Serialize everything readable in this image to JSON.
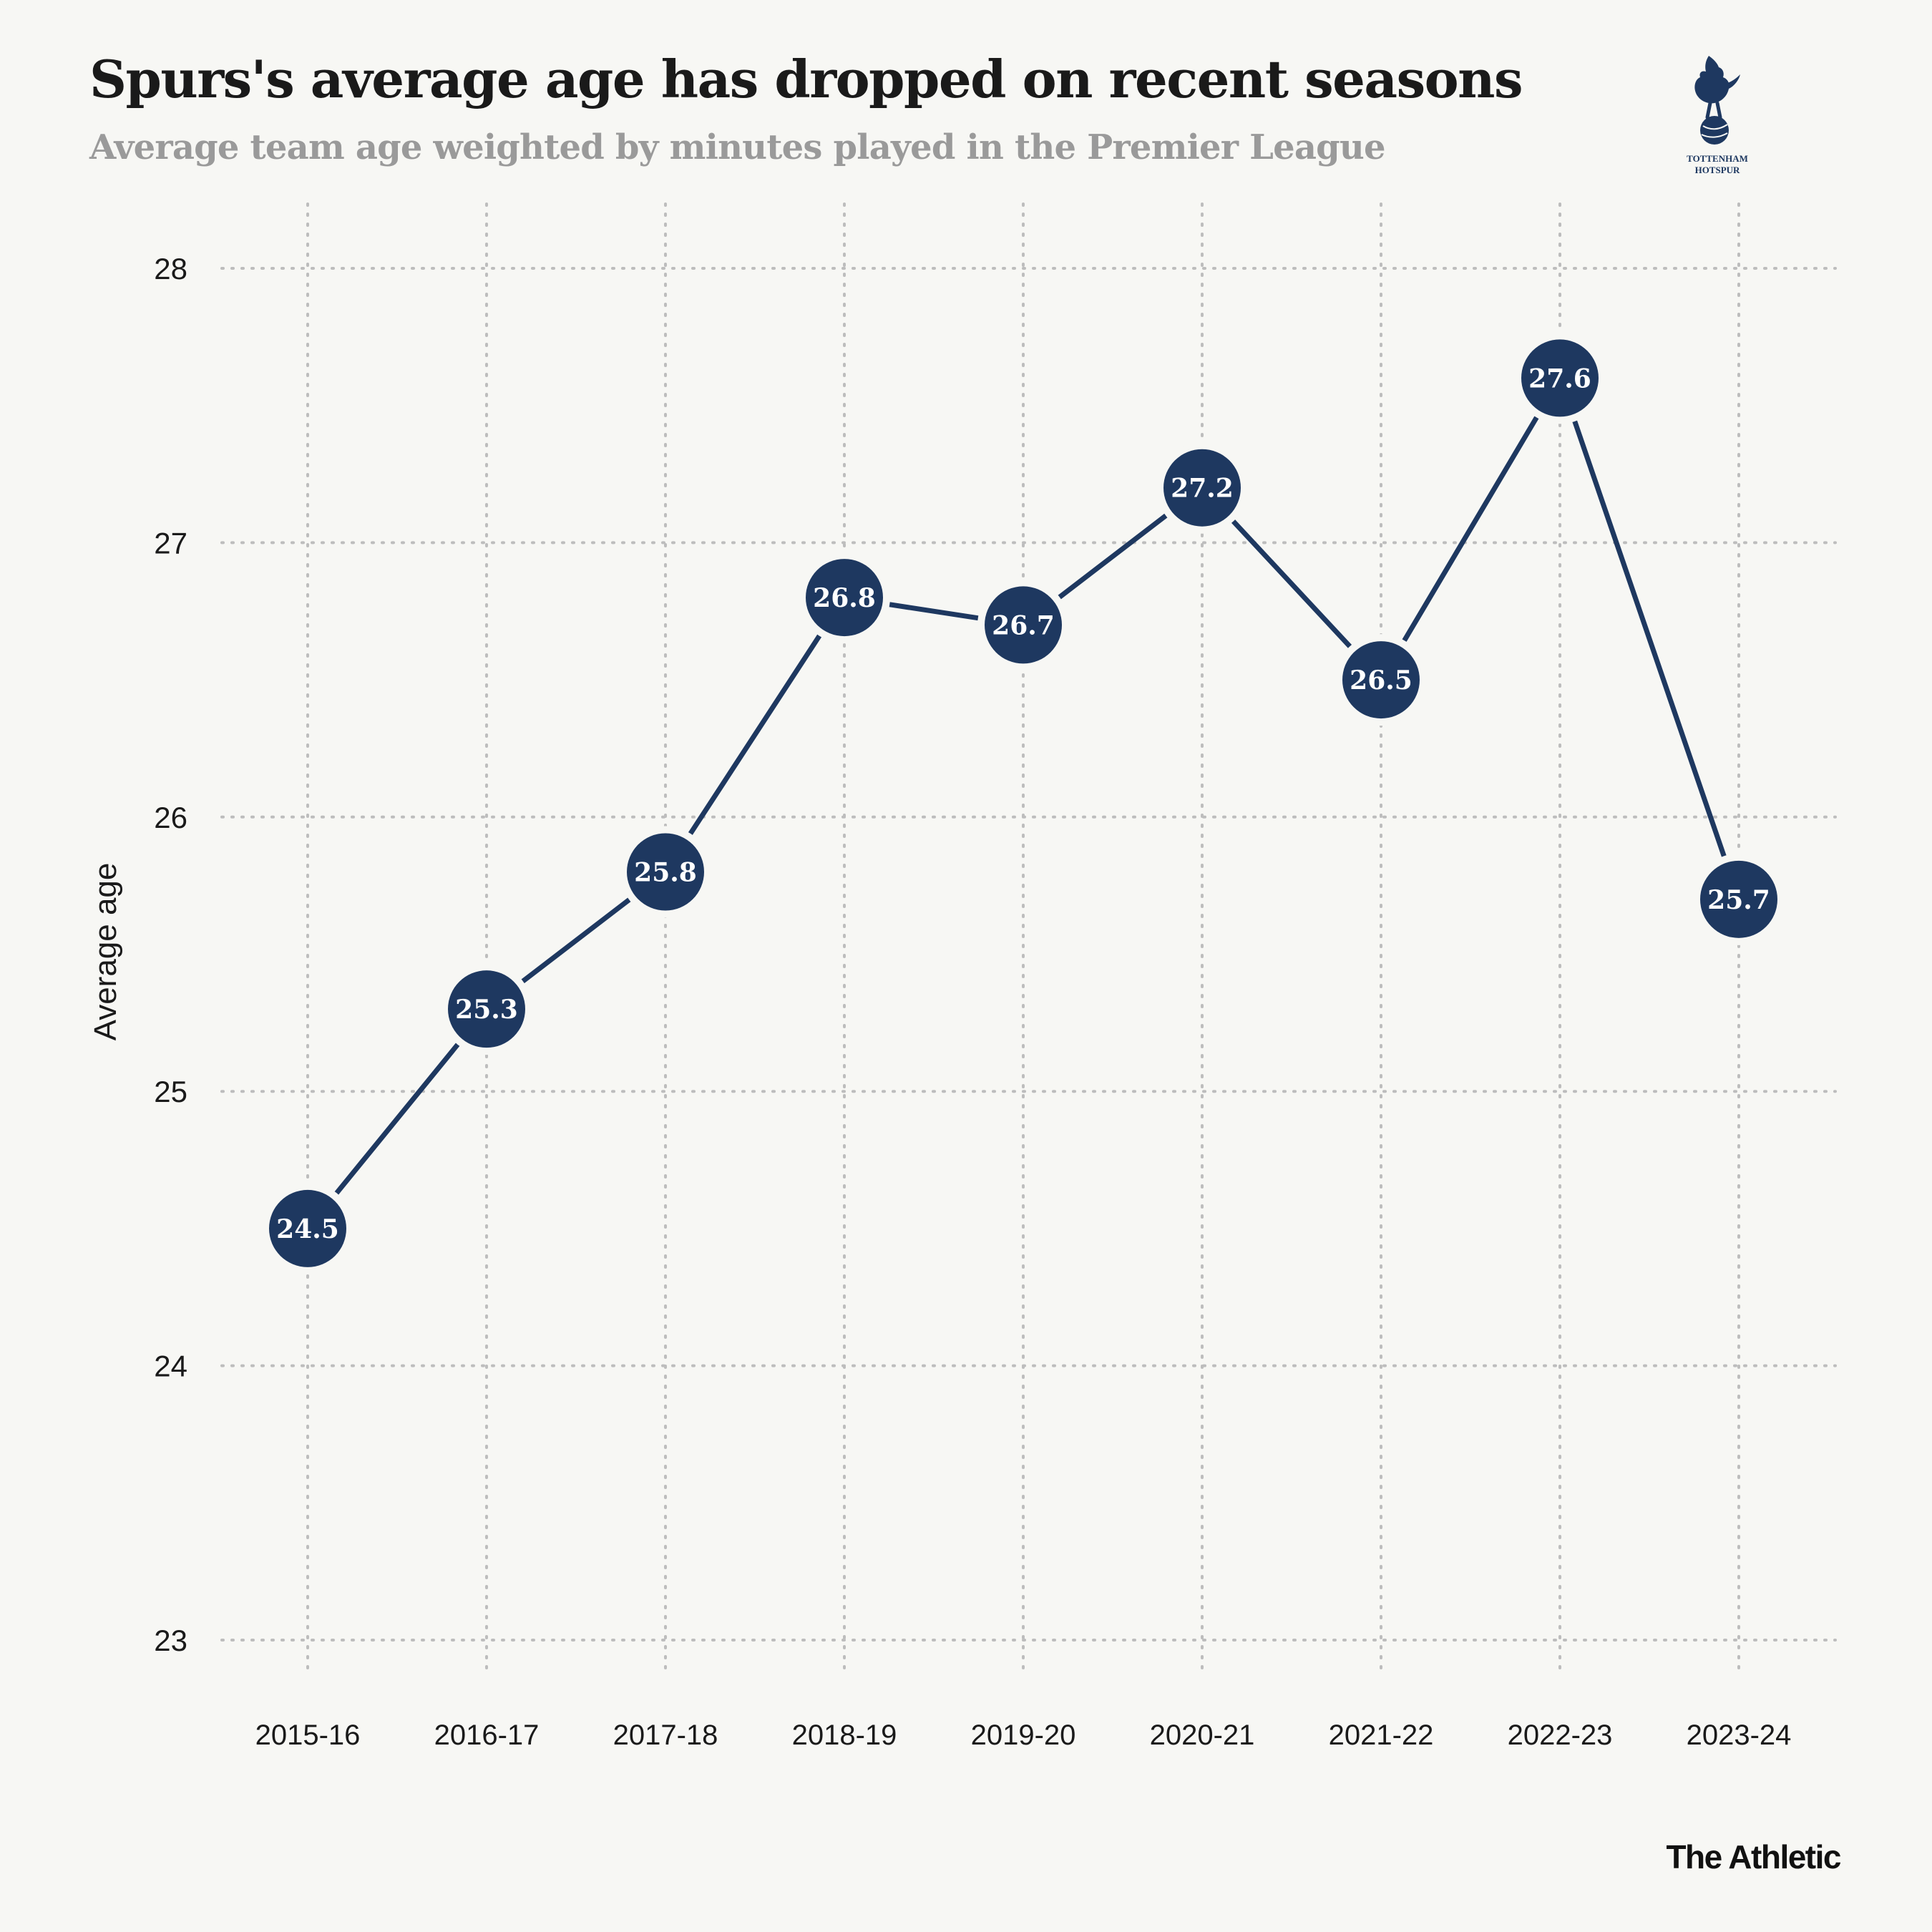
{
  "header": {
    "title": "Spurs's average age has dropped on recent seasons",
    "subtitle": "Average team age weighted by minutes played in the Premier League"
  },
  "logo": {
    "line1": "TOTTENHAM",
    "line2": "HOTSPUR"
  },
  "brand": "The Athletic",
  "colors": {
    "point": "#1e3860",
    "line": "#1e3860",
    "grid": "#bdbdbd",
    "background": "#f7f7f4",
    "label": "#ffffff"
  },
  "chart_data": {
    "type": "line",
    "title": "Spurs's average age has dropped on recent seasons",
    "subtitle": "Average team age weighted by minutes played in the Premier League",
    "xlabel": "",
    "ylabel": "Average age",
    "categories": [
      "2015-16",
      "2016-17",
      "2017-18",
      "2018-19",
      "2019-20",
      "2020-21",
      "2021-22",
      "2022-23",
      "2023-24"
    ],
    "values": [
      24.5,
      25.3,
      25.8,
      26.8,
      26.7,
      27.2,
      26.5,
      27.6,
      25.7
    ],
    "data_labels": [
      "24.5",
      "25.3",
      "25.8",
      "26.8",
      "26.7",
      "27.2",
      "26.5",
      "27.6",
      "25.7"
    ],
    "yticks": [
      "23",
      "24",
      "25",
      "26",
      "27",
      "28"
    ],
    "ylim": [
      23,
      28
    ],
    "grid": true,
    "grid_style": "dotted"
  }
}
